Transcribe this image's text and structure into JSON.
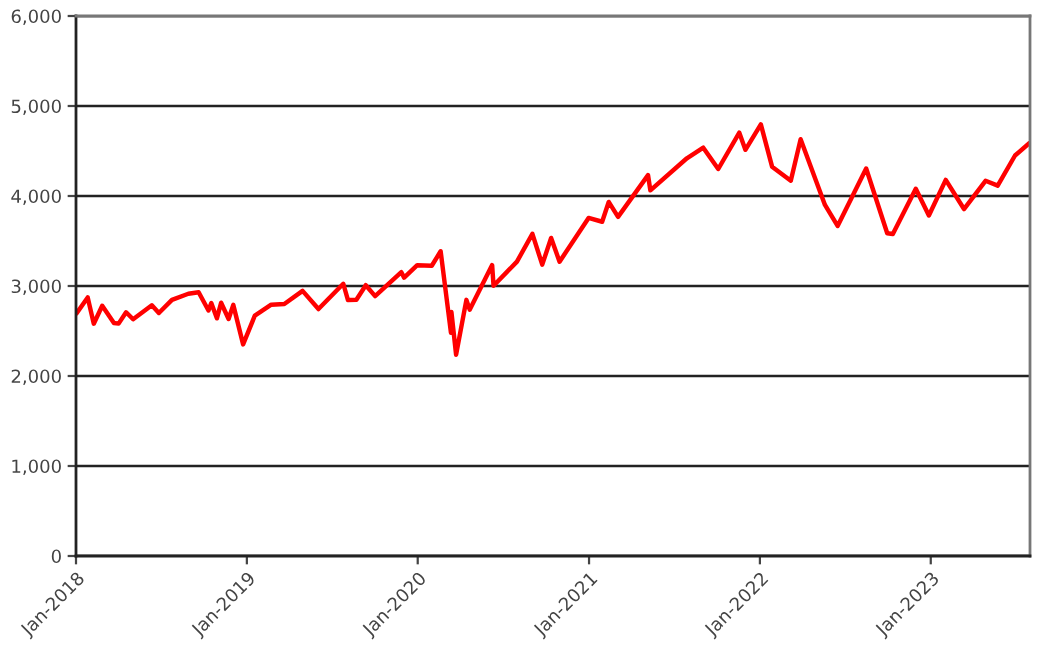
{
  "chart_data": {
    "type": "line",
    "x": [
      "2018-01-02",
      "2018-01-26",
      "2018-02-08",
      "2018-02-26",
      "2018-03-23",
      "2018-04-02",
      "2018-04-18",
      "2018-05-03",
      "2018-06-12",
      "2018-06-27",
      "2018-07-25",
      "2018-08-29",
      "2018-09-20",
      "2018-10-11",
      "2018-10-17",
      "2018-10-29",
      "2018-11-07",
      "2018-11-23",
      "2018-12-03",
      "2018-12-24",
      "2019-01-18",
      "2019-02-22",
      "2019-03-22",
      "2019-04-30",
      "2019-06-03",
      "2019-07-26",
      "2019-08-05",
      "2019-08-23",
      "2019-09-12",
      "2019-10-02",
      "2019-11-27",
      "2019-12-03",
      "2019-12-31",
      "2020-01-31",
      "2020-02-19",
      "2020-03-12",
      "2020-03-13",
      "2020-03-23",
      "2020-04-14",
      "2020-04-21",
      "2020-06-08",
      "2020-06-11",
      "2020-07-31",
      "2020-09-02",
      "2020-09-23",
      "2020-10-12",
      "2020-10-30",
      "2020-12-31",
      "2021-01-29",
      "2021-02-12",
      "2021-03-04",
      "2021-05-07",
      "2021-05-12",
      "2021-07-29",
      "2021-09-02",
      "2021-10-04",
      "2021-11-18",
      "2021-12-01",
      "2022-01-03",
      "2022-01-27",
      "2022-03-08",
      "2022-03-29",
      "2022-05-20",
      "2022-06-16",
      "2022-08-16",
      "2022-09-30",
      "2022-10-12",
      "2022-11-30",
      "2022-12-28",
      "2023-02-02",
      "2023-03-13",
      "2023-04-28",
      "2023-05-24",
      "2023-06-30",
      "2023-07-31"
    ],
    "series": [
      {
        "color": "#ff0000",
        "values": [
          2695,
          2873,
          2581,
          2780,
          2588,
          2582,
          2708,
          2630,
          2786,
          2700,
          2846,
          2914,
          2931,
          2728,
          2810,
          2641,
          2814,
          2633,
          2790,
          2351,
          2670,
          2792,
          2800,
          2946,
          2744,
          3025,
          2844,
          2847,
          3009,
          2887,
          3153,
          3093,
          3231,
          3225,
          3386,
          2480,
          2711,
          2237,
          2846,
          2737,
          3232,
          3002,
          3271,
          3580,
          3237,
          3534,
          3270,
          3756,
          3714,
          3934,
          3768,
          4232,
          4063,
          4419,
          4537,
          4300,
          4704,
          4513,
          4796,
          4326,
          4170,
          4631,
          3901,
          3667,
          4305,
          3586,
          3577,
          4080,
          3783,
          4179,
          3855,
          4169,
          4115,
          4450,
          4589
        ]
      }
    ],
    "xlim": [
      "2018-01-01",
      "2023-08-01"
    ],
    "xticks": [
      {
        "value": "2018-01-01",
        "label": "Jan-2018"
      },
      {
        "value": "2019-01-01",
        "label": "Jan-2019"
      },
      {
        "value": "2020-01-01",
        "label": "Jan-2020"
      },
      {
        "value": "2021-01-01",
        "label": "Jan-2021"
      },
      {
        "value": "2022-01-01",
        "label": "Jan-2022"
      },
      {
        "value": "2023-01-01",
        "label": "Jan-2023"
      }
    ],
    "ylim": [
      0,
      6000
    ],
    "yticks": [
      {
        "value": 0,
        "label": "0"
      },
      {
        "value": 1000,
        "label": "1,000"
      },
      {
        "value": 2000,
        "label": "2,000"
      },
      {
        "value": 3000,
        "label": "3,000"
      },
      {
        "value": 4000,
        "label": "4,000"
      },
      {
        "value": 5000,
        "label": "5,000"
      },
      {
        "value": 6000,
        "label": "6,000"
      }
    ],
    "grid": "y",
    "legend": false,
    "marker": "none",
    "line_style": "solid"
  }
}
